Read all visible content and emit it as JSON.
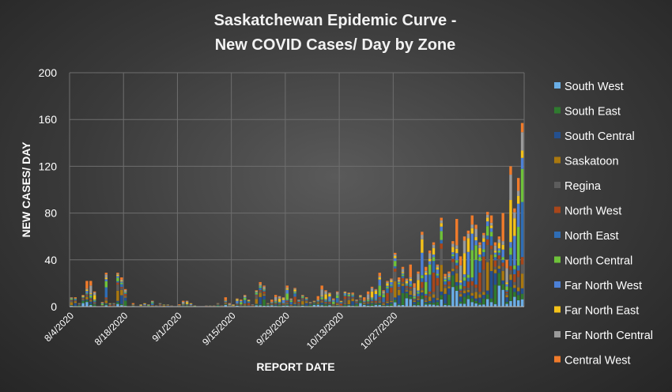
{
  "chart_data": {
    "type": "bar",
    "stacked": true,
    "title_line1": "Saskatchewan Epidemic Curve -",
    "title_line2": "New COVID Cases/ Day by Zone",
    "xlabel": "REPORT DATE",
    "ylabel": "NEW CASES/ DAY",
    "ylim": [
      0,
      200
    ],
    "yticks": [
      "0",
      "40",
      "80",
      "120",
      "160",
      "200"
    ],
    "xticks": [
      "8/4/2020",
      "8/18/2020",
      "9/1/2020",
      "9/15/2020",
      "9/29/2020",
      "10/13/2020",
      "10/27/2020"
    ],
    "grid": true,
    "legend_position": "right",
    "start_date": "2020-08-04",
    "totals": [
      8,
      8,
      3,
      10,
      22,
      22,
      13,
      0,
      4,
      29,
      3,
      3,
      29,
      25,
      15,
      0,
      3,
      0,
      2,
      3,
      2,
      5,
      1,
      3,
      2,
      2,
      1,
      0,
      2,
      5,
      5,
      3,
      1,
      0,
      0,
      1,
      1,
      1,
      3,
      1,
      8,
      3,
      2,
      7,
      6,
      10,
      6,
      2,
      14,
      21,
      18,
      3,
      6,
      10,
      9,
      8,
      18,
      7,
      16,
      6,
      10,
      8,
      4,
      5,
      9,
      18,
      14,
      12,
      7,
      13,
      5,
      13,
      12,
      12,
      6,
      10,
      8,
      13,
      17,
      15,
      29,
      14,
      22,
      24,
      46,
      25,
      34,
      24,
      36,
      20,
      30,
      64,
      34,
      48,
      55,
      36,
      76,
      28,
      30,
      56,
      75,
      43,
      60,
      65,
      78,
      70,
      55,
      63,
      81,
      78,
      55,
      60,
      80,
      40,
      120,
      84,
      110,
      157
    ],
    "series": [
      {
        "name": "South West",
        "color": "#6aaee6"
      },
      {
        "name": "South East",
        "color": "#2f7a2f"
      },
      {
        "name": "South Central",
        "color": "#24508f"
      },
      {
        "name": "Saskatoon",
        "color": "#a9780f"
      },
      {
        "name": "Regina",
        "color": "#5c5c5c"
      },
      {
        "name": "North West",
        "color": "#a8461a"
      },
      {
        "name": "North East",
        "color": "#2f6db5"
      },
      {
        "name": "North Central",
        "color": "#6ec23a"
      },
      {
        "name": "Far North West",
        "color": "#4c80d6"
      },
      {
        "name": "Far North East",
        "color": "#f4c21a"
      },
      {
        "name": "Far North Central",
        "color": "#9a9a9a"
      },
      {
        "name": "Central West",
        "color": "#f07b2b"
      }
    ]
  }
}
